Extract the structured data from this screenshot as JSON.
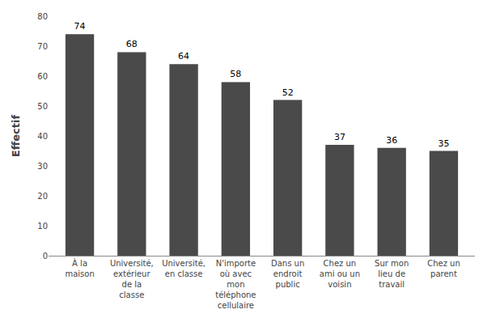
{
  "chart_data": {
    "type": "bar",
    "ylabel": "Effectif",
    "categories": [
      "À la\nmaison",
      "Université,\nextérieur\nde la\nclasse",
      "Université,\nen classe",
      "N'importe\noù avec\nmon\ntéléphone\ncellulaire",
      "Dans un\nendroit\npublic",
      "Chez un\nami ou un\nvoisin",
      "Sur mon\nlieu de\ntravail",
      "Chez un\nparent"
    ],
    "values": [
      74,
      68,
      64,
      58,
      52,
      37,
      36,
      35
    ],
    "color": "#4a4a4a",
    "ylim": [
      0,
      80
    ],
    "yticks": [
      0,
      10,
      20,
      30,
      40,
      50,
      60,
      70,
      80
    ],
    "grid": false,
    "data_labels": true
  }
}
